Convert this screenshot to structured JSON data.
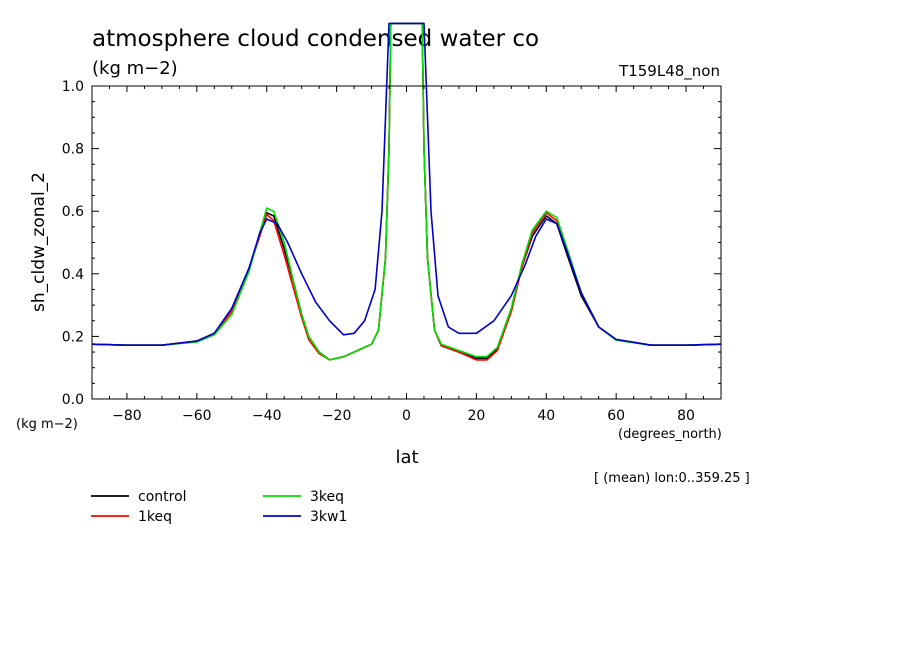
{
  "chart_data": {
    "type": "line",
    "title": "atmosphere cloud condensed water co",
    "units": "(kg m−2)",
    "run_label": "T159L48_non",
    "xlabel": "lat",
    "x_units": "(degrees_north)",
    "ylabel": "sh_cldw_zonal_2",
    "y_units": "(kg m−2)",
    "subset_note": "[ (mean) lon:0..359.25 ]",
    "xlim": [
      -90,
      90
    ],
    "ylim": [
      0,
      1.0
    ],
    "x_ticks": [
      -80,
      -60,
      -40,
      -20,
      0,
      20,
      40,
      60,
      80
    ],
    "x_tick_labels": [
      "−80",
      "−60",
      "−40",
      "−20",
      "0",
      "20",
      "40",
      "60",
      "80"
    ],
    "y_ticks": [
      0,
      0.2,
      0.4,
      0.6,
      0.8,
      1.0
    ],
    "y_tick_labels": [
      "0.0",
      "0.2",
      "0.4",
      "0.6",
      "0.8",
      "1.0"
    ],
    "grid": false,
    "legend_position": "bottom-left",
    "series": [
      {
        "name": "control",
        "color": "#000000",
        "points": [
          [
            -90,
            0.175
          ],
          [
            -80,
            0.172
          ],
          [
            -70,
            0.172
          ],
          [
            -60,
            0.185
          ],
          [
            -55,
            0.21
          ],
          [
            -50,
            0.28
          ],
          [
            -45,
            0.42
          ],
          [
            -42,
            0.52
          ],
          [
            -40,
            0.595
          ],
          [
            -38,
            0.585
          ],
          [
            -35,
            0.48
          ],
          [
            -32,
            0.36
          ],
          [
            -30,
            0.27
          ],
          [
            -28,
            0.2
          ],
          [
            -25,
            0.15
          ],
          [
            -22,
            0.125
          ],
          [
            -18,
            0.135
          ],
          [
            -14,
            0.155
          ],
          [
            -10,
            0.175
          ],
          [
            -8,
            0.22
          ],
          [
            -6,
            0.45
          ],
          [
            -5,
            0.8
          ],
          [
            -4.5,
            1.2
          ],
          [
            4.5,
            1.2
          ],
          [
            5,
            0.8
          ],
          [
            6,
            0.45
          ],
          [
            8,
            0.22
          ],
          [
            10,
            0.17
          ],
          [
            15,
            0.15
          ],
          [
            20,
            0.13
          ],
          [
            23,
            0.13
          ],
          [
            26,
            0.16
          ],
          [
            30,
            0.28
          ],
          [
            33,
            0.42
          ],
          [
            36,
            0.52
          ],
          [
            40,
            0.585
          ],
          [
            43,
            0.56
          ],
          [
            46,
            0.46
          ],
          [
            50,
            0.33
          ],
          [
            55,
            0.23
          ],
          [
            60,
            0.19
          ],
          [
            70,
            0.172
          ],
          [
            80,
            0.172
          ],
          [
            90,
            0.175
          ]
        ]
      },
      {
        "name": "1keq",
        "color": "#ff0000",
        "points": [
          [
            -90,
            0.175
          ],
          [
            -80,
            0.172
          ],
          [
            -70,
            0.172
          ],
          [
            -60,
            0.185
          ],
          [
            -55,
            0.21
          ],
          [
            -50,
            0.28
          ],
          [
            -45,
            0.42
          ],
          [
            -42,
            0.52
          ],
          [
            -40,
            0.59
          ],
          [
            -38,
            0.57
          ],
          [
            -35,
            0.46
          ],
          [
            -32,
            0.34
          ],
          [
            -30,
            0.26
          ],
          [
            -28,
            0.19
          ],
          [
            -25,
            0.145
          ],
          [
            -22,
            0.125
          ],
          [
            -18,
            0.135
          ],
          [
            -14,
            0.155
          ],
          [
            -10,
            0.175
          ],
          [
            -8,
            0.22
          ],
          [
            -6,
            0.45
          ],
          [
            -5,
            0.8
          ],
          [
            -4.5,
            1.2
          ],
          [
            4.5,
            1.2
          ],
          [
            5,
            0.8
          ],
          [
            6,
            0.45
          ],
          [
            8,
            0.22
          ],
          [
            10,
            0.17
          ],
          [
            15,
            0.15
          ],
          [
            20,
            0.125
          ],
          [
            23,
            0.125
          ],
          [
            26,
            0.155
          ],
          [
            30,
            0.28
          ],
          [
            33,
            0.42
          ],
          [
            36,
            0.53
          ],
          [
            40,
            0.595
          ],
          [
            43,
            0.57
          ],
          [
            46,
            0.47
          ],
          [
            50,
            0.34
          ],
          [
            55,
            0.23
          ],
          [
            60,
            0.19
          ],
          [
            70,
            0.172
          ],
          [
            80,
            0.172
          ],
          [
            90,
            0.175
          ]
        ]
      },
      {
        "name": "3keq",
        "color": "#00dd00",
        "points": [
          [
            -90,
            0.175
          ],
          [
            -80,
            0.172
          ],
          [
            -70,
            0.172
          ],
          [
            -60,
            0.182
          ],
          [
            -55,
            0.205
          ],
          [
            -50,
            0.27
          ],
          [
            -45,
            0.41
          ],
          [
            -42,
            0.53
          ],
          [
            -40,
            0.61
          ],
          [
            -38,
            0.6
          ],
          [
            -35,
            0.5
          ],
          [
            -32,
            0.36
          ],
          [
            -30,
            0.27
          ],
          [
            -28,
            0.2
          ],
          [
            -25,
            0.15
          ],
          [
            -22,
            0.125
          ],
          [
            -18,
            0.135
          ],
          [
            -14,
            0.155
          ],
          [
            -10,
            0.175
          ],
          [
            -8,
            0.22
          ],
          [
            -6,
            0.45
          ],
          [
            -5,
            0.8
          ],
          [
            -4.5,
            1.2
          ],
          [
            4.5,
            1.2
          ],
          [
            5,
            0.8
          ],
          [
            6,
            0.45
          ],
          [
            8,
            0.22
          ],
          [
            10,
            0.175
          ],
          [
            15,
            0.155
          ],
          [
            20,
            0.135
          ],
          [
            23,
            0.135
          ],
          [
            26,
            0.165
          ],
          [
            30,
            0.29
          ],
          [
            33,
            0.43
          ],
          [
            36,
            0.54
          ],
          [
            40,
            0.6
          ],
          [
            43,
            0.58
          ],
          [
            46,
            0.48
          ],
          [
            50,
            0.34
          ],
          [
            55,
            0.23
          ],
          [
            60,
            0.188
          ],
          [
            70,
            0.172
          ],
          [
            80,
            0.172
          ],
          [
            90,
            0.175
          ]
        ]
      },
      {
        "name": "3kw1",
        "color": "#0000cc",
        "points": [
          [
            -90,
            0.175
          ],
          [
            -80,
            0.172
          ],
          [
            -70,
            0.172
          ],
          [
            -60,
            0.185
          ],
          [
            -55,
            0.21
          ],
          [
            -50,
            0.29
          ],
          [
            -45,
            0.42
          ],
          [
            -42,
            0.53
          ],
          [
            -40,
            0.575
          ],
          [
            -37,
            0.56
          ],
          [
            -34,
            0.5
          ],
          [
            -30,
            0.4
          ],
          [
            -26,
            0.31
          ],
          [
            -22,
            0.25
          ],
          [
            -18,
            0.205
          ],
          [
            -15,
            0.21
          ],
          [
            -12,
            0.25
          ],
          [
            -9,
            0.35
          ],
          [
            -7,
            0.6
          ],
          [
            -6,
            0.9
          ],
          [
            -5,
            1.2
          ],
          [
            5,
            1.2
          ],
          [
            6,
            0.9
          ],
          [
            7,
            0.6
          ],
          [
            9,
            0.33
          ],
          [
            12,
            0.23
          ],
          [
            15,
            0.21
          ],
          [
            20,
            0.21
          ],
          [
            25,
            0.25
          ],
          [
            30,
            0.33
          ],
          [
            34,
            0.43
          ],
          [
            37,
            0.52
          ],
          [
            40,
            0.575
          ],
          [
            43,
            0.56
          ],
          [
            46,
            0.47
          ],
          [
            50,
            0.34
          ],
          [
            55,
            0.23
          ],
          [
            60,
            0.19
          ],
          [
            70,
            0.172
          ],
          [
            80,
            0.172
          ],
          [
            90,
            0.175
          ]
        ]
      }
    ]
  }
}
